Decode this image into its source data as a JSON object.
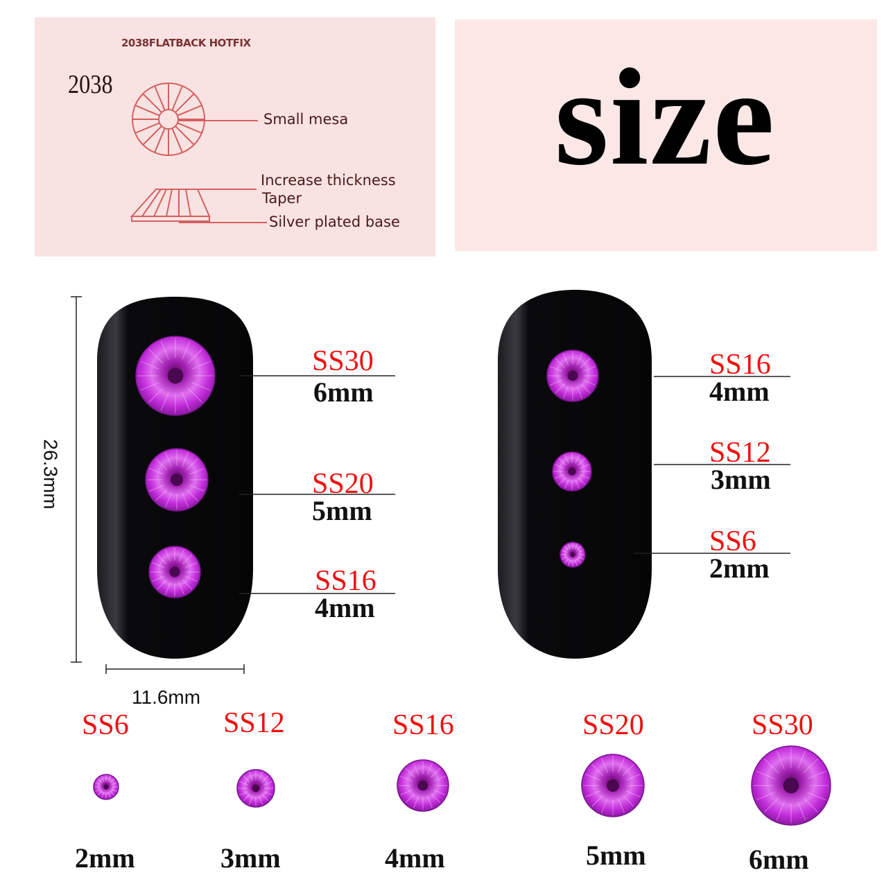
{
  "diagram_panel": {
    "header": "2038FLATBACK HOTFIX",
    "model": "2038",
    "callouts": [
      "Small mesa",
      "Increase thickness",
      "Taper",
      "Silver plated base"
    ],
    "line_color": "#d46060"
  },
  "title_panel": {
    "title": "size"
  },
  "nail_left": {
    "height_label": "26.3mm",
    "width_label": "11.6mm",
    "stones": [
      {
        "ss": "SS30",
        "mm": "6mm"
      },
      {
        "ss": "SS20",
        "mm": "5mm"
      },
      {
        "ss": "SS16",
        "mm": "4mm"
      }
    ]
  },
  "nail_right": {
    "stones": [
      {
        "ss": "SS16",
        "mm": "4mm"
      },
      {
        "ss": "SS12",
        "mm": "3mm"
      },
      {
        "ss": "SS6",
        "mm": "2mm"
      }
    ]
  },
  "size_row": [
    {
      "ss": "SS6",
      "mm": "2mm"
    },
    {
      "ss": "SS12",
      "mm": "3mm"
    },
    {
      "ss": "SS16",
      "mm": "4mm"
    },
    {
      "ss": "SS20",
      "mm": "5mm"
    },
    {
      "ss": "SS30",
      "mm": "6mm"
    }
  ],
  "colors": {
    "stone": "#c42be0",
    "label_red": "#ee1111",
    "nail": "#0b0b0d",
    "panel_pink": "#f9e2e2"
  }
}
